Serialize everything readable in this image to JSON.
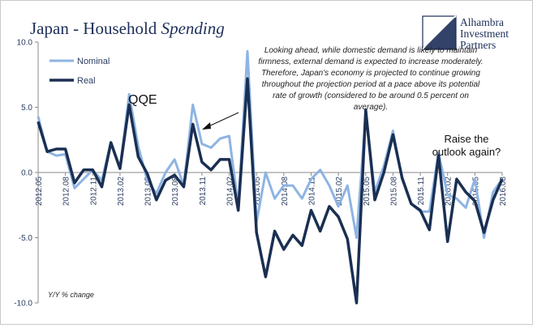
{
  "logo": {
    "lines": [
      "Alhambra",
      "Investment",
      "Partners"
    ],
    "color": "#1c2e59"
  },
  "chart_data": {
    "type": "line",
    "title": "Japan - Household ",
    "title_italic": "Spending",
    "ylim": [
      -10,
      10
    ],
    "yticks": [
      "10.0",
      "5.0",
      "0.0",
      "-5.0",
      "-10.0"
    ],
    "ytick_values": [
      10,
      5,
      0,
      -5,
      -10
    ],
    "units_label": "Y/Y % change",
    "x_range": [
      0,
      51
    ],
    "x_tick_labels": [
      {
        "label": "2012.05",
        "i": 0
      },
      {
        "label": "2012.08",
        "i": 3
      },
      {
        "label": "2012.11",
        "i": 6
      },
      {
        "label": "2013.02",
        "i": 9
      },
      {
        "label": "2013.05",
        "i": 12
      },
      {
        "label": "2013.08",
        "i": 15
      },
      {
        "label": "2013.11",
        "i": 18
      },
      {
        "label": "2014.02",
        "i": 21
      },
      {
        "label": "2014.05",
        "i": 24
      },
      {
        "label": "2014.08",
        "i": 27
      },
      {
        "label": "2014.11",
        "i": 30
      },
      {
        "label": "2015.02",
        "i": 33
      },
      {
        "label": "2015.05",
        "i": 36
      },
      {
        "label": "2015.08",
        "i": 39
      },
      {
        "label": "2015.11",
        "i": 42
      },
      {
        "label": "2016.02",
        "i": 45
      },
      {
        "label": "2016.05",
        "i": 48
      },
      {
        "label": "2016.08",
        "i": 51
      },
      {
        "label": "2016.11",
        "i": 54
      }
    ],
    "series": [
      {
        "name": "Nominal",
        "color": "#8eb4e3",
        "width": 3,
        "values": [
          4.3,
          1.6,
          1.3,
          1.4,
          -1.2,
          -0.5,
          0.2,
          -0.6,
          2.3,
          0.3,
          6.0,
          2.0,
          -0.6,
          -1.6,
          0.0,
          1.0,
          -1.0,
          5.2,
          2.2,
          1.9,
          2.6,
          2.8,
          -2.6,
          9.3,
          -3.8,
          0.0,
          -2.0,
          -1.0,
          -1.0,
          -2.0,
          -0.5,
          0.2,
          -1.0,
          -2.6,
          -1.0,
          -5.0,
          4.5,
          -1.5,
          0.5,
          3.2,
          -0.5,
          -2.4,
          -3.0,
          -3.0,
          1.5,
          -1.7,
          -2.0,
          -2.7,
          -0.5,
          -5.0,
          -1.5,
          -0.5,
          -0.5,
          0.1
        ]
      },
      {
        "name": "Real",
        "color": "#1a2f52",
        "width": 3.5,
        "values": [
          3.9,
          1.6,
          1.8,
          1.8,
          -0.8,
          0.2,
          0.2,
          -1.1,
          2.3,
          0.3,
          5.2,
          1.2,
          -0.1,
          -2.1,
          -0.6,
          -0.2,
          -1.1,
          3.7,
          0.8,
          0.2,
          1.0,
          1.0,
          -2.9,
          7.2,
          -4.6,
          -8.0,
          -4.5,
          -5.9,
          -4.8,
          -5.6,
          -2.9,
          -4.5,
          -2.6,
          -3.4,
          -5.1,
          -10.0,
          4.8,
          -2.1,
          0.0,
          2.9,
          -0.4,
          -2.4,
          -2.9,
          -4.4,
          1.3,
          -5.3,
          -0.5,
          -1.5,
          -2.2,
          -4.6,
          -2.1,
          -0.5,
          -1.5,
          -0.3
        ]
      }
    ],
    "annotations": {
      "qqe": "QQE",
      "raise": [
        "Raise the",
        "outlook again?"
      ],
      "quote": [
        "Looking ahead, while domestic demand is likely to maintain",
        "firmness, external demand is expected to increase moderately.",
        "Therefore, Japan's economy is projected to continue growing",
        "throughout the projection period at a pace above its potential",
        "rate of growth (considered to be around 0.5 percent on",
        "average)."
      ]
    }
  }
}
